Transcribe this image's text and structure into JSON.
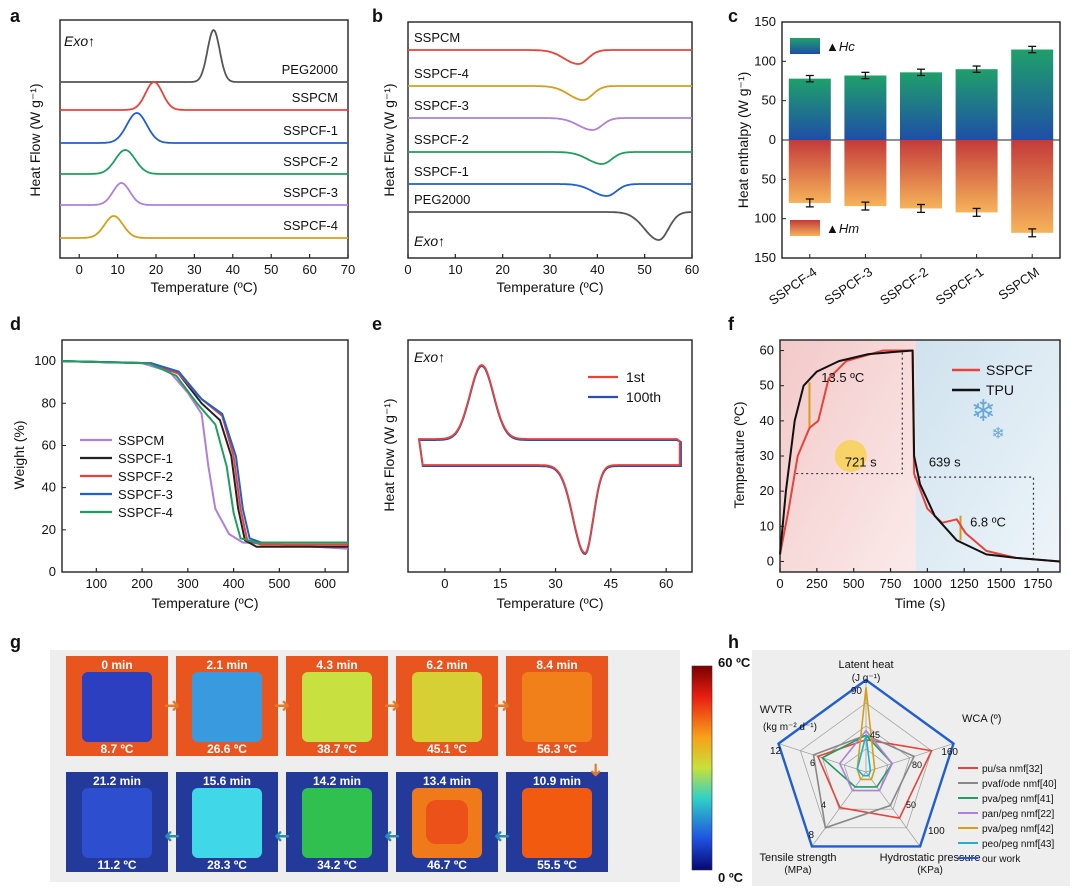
{
  "panel_letters": {
    "a": "a",
    "b": "b",
    "c": "c",
    "d": "d",
    "e": "e",
    "f": "f",
    "g": "g",
    "h": "h"
  },
  "chart_data": [
    {
      "id": "a",
      "type": "line",
      "title": "",
      "xlabel": "Temperature (ºC)",
      "ylabel": "Heat Flow (W g⁻¹)",
      "xlim": [
        -5,
        70
      ],
      "xticks": [
        0,
        10,
        20,
        30,
        40,
        50,
        60,
        70
      ],
      "annotation": "Exo↑",
      "series": [
        {
          "name": "PEG2000",
          "color": "#555555",
          "peak_x": 35
        },
        {
          "name": "SSPCM",
          "color": "#e8423b",
          "peak_x": 19.5
        },
        {
          "name": "SSPCF-1",
          "color": "#1f5fcf",
          "peak_x": 15
        },
        {
          "name": "SSPCF-2",
          "color": "#1f9e5f",
          "peak_x": 12
        },
        {
          "name": "SSPCF-3",
          "color": "#b07fd8",
          "peak_x": 11
        },
        {
          "name": "SSPCF-4",
          "color": "#d4a017",
          "peak_x": 9
        }
      ]
    },
    {
      "id": "b",
      "type": "line",
      "xlabel": "Temperature (ºC)",
      "ylabel": "Heat Flow (W g⁻¹)",
      "xlim": [
        0,
        60
      ],
      "xticks": [
        0,
        10,
        20,
        30,
        40,
        50,
        60
      ],
      "annotation": "Exo↑",
      "series": [
        {
          "name": "SSPCM",
          "color": "#e8423b",
          "dip_x": 36
        },
        {
          "name": "SSPCF-4",
          "color": "#d4a017",
          "dip_x": 37
        },
        {
          "name": "SSPCF-3",
          "color": "#b07fd8",
          "dip_x": 39
        },
        {
          "name": "SSPCF-2",
          "color": "#1f9e5f",
          "dip_x": 41
        },
        {
          "name": "SSPCF-1",
          "color": "#1f5fcf",
          "dip_x": 42
        },
        {
          "name": "PEG2000",
          "color": "#555555",
          "dip_x": 53
        }
      ]
    },
    {
      "id": "c",
      "type": "bar",
      "ylabel": "Heat enthalpy (W g⁻¹)",
      "ylim": [
        150,
        -150
      ],
      "yticks": [
        150,
        100,
        50,
        0,
        50,
        100,
        150
      ],
      "categories": [
        "SSPCF-4",
        "SSPCF-3",
        "SSPCF-2",
        "SSPCF-1",
        "SSPCM"
      ],
      "series": [
        {
          "name": "▲Hc",
          "values": [
            78,
            82,
            86,
            90,
            115
          ],
          "errors": [
            4,
            4,
            4,
            4,
            4
          ]
        },
        {
          "name": "▲Hm",
          "values": [
            -80,
            -84,
            -87,
            -92,
            -118
          ],
          "errors": [
            5,
            5,
            5,
            5,
            5
          ]
        }
      ]
    },
    {
      "id": "d",
      "type": "line",
      "xlabel": "Temperature (ºC)",
      "ylabel": "Weight (%)",
      "xlim": [
        25,
        650
      ],
      "ylim": [
        0,
        110
      ],
      "xticks": [
        100,
        200,
        300,
        400,
        500,
        600
      ],
      "yticks": [
        0,
        20,
        40,
        60,
        80,
        100
      ],
      "series": [
        {
          "name": "SSPCM",
          "color": "#b07fd8",
          "points": [
            [
              25,
              100
            ],
            [
              200,
              99
            ],
            [
              260,
              95
            ],
            [
              300,
              85
            ],
            [
              330,
              75
            ],
            [
              345,
              50
            ],
            [
              360,
              30
            ],
            [
              390,
              18
            ],
            [
              420,
              14
            ],
            [
              650,
              11
            ]
          ]
        },
        {
          "name": "SSPCF-1",
          "color": "#222222",
          "points": [
            [
              25,
              100
            ],
            [
              220,
              99
            ],
            [
              280,
              94
            ],
            [
              330,
              80
            ],
            [
              370,
              72
            ],
            [
              395,
              55
            ],
            [
              410,
              30
            ],
            [
              425,
              15
            ],
            [
              450,
              12
            ],
            [
              650,
              12
            ]
          ]
        },
        {
          "name": "SSPCF-2",
          "color": "#e8423b",
          "points": [
            [
              25,
              100
            ],
            [
              220,
              99
            ],
            [
              280,
              94
            ],
            [
              330,
              82
            ],
            [
              375,
              74
            ],
            [
              400,
              55
            ],
            [
              415,
              30
            ],
            [
              430,
              15
            ],
            [
              460,
              13
            ],
            [
              650,
              13
            ]
          ]
        },
        {
          "name": "SSPCF-3",
          "color": "#1f5fcf",
          "points": [
            [
              25,
              100
            ],
            [
              220,
              99
            ],
            [
              280,
              95
            ],
            [
              330,
              82
            ],
            [
              375,
              75
            ],
            [
              405,
              55
            ],
            [
              420,
              30
            ],
            [
              435,
              16
            ],
            [
              460,
              14
            ],
            [
              650,
              14
            ]
          ]
        },
        {
          "name": "SSPCF-4",
          "color": "#1f9e5f",
          "points": [
            [
              25,
              100
            ],
            [
              215,
              99
            ],
            [
              275,
              93
            ],
            [
              320,
              80
            ],
            [
              360,
              70
            ],
            [
              385,
              50
            ],
            [
              400,
              28
            ],
            [
              415,
              16
            ],
            [
              450,
              14
            ],
            [
              650,
              14
            ]
          ]
        }
      ]
    },
    {
      "id": "e",
      "type": "line",
      "xlabel": "Temperature (ºC)",
      "ylabel": "Heat Flow (W g⁻¹)",
      "xlim": [
        -10,
        67
      ],
      "xticks": [
        0,
        15,
        30,
        45,
        60
      ],
      "annotation": "Exo↑",
      "series": [
        {
          "name": "1st",
          "color": "#e8423b"
        },
        {
          "name": "100th",
          "color": "#2b4fb0"
        }
      ]
    },
    {
      "id": "f",
      "type": "line",
      "xlabel": "Time (s)",
      "ylabel": "Temperature (ºC)",
      "xlim": [
        0,
        1900
      ],
      "ylim": [
        -3,
        63
      ],
      "xticks": [
        0,
        250,
        500,
        750,
        1000,
        1250,
        1500,
        1750
      ],
      "yticks": [
        0,
        10,
        20,
        30,
        40,
        50,
        60
      ],
      "annotations": [
        "13.5 ºC",
        "721 s",
        "639 s",
        "6.8 ºC"
      ],
      "series": [
        {
          "name": "SSPCF",
          "color": "#e8423b",
          "points": [
            [
              0,
              2
            ],
            [
              60,
              15
            ],
            [
              120,
              30
            ],
            [
              200,
              38
            ],
            [
              260,
              40
            ],
            [
              330,
              52
            ],
            [
              450,
              57
            ],
            [
              700,
              60
            ],
            [
              900,
              60
            ],
            [
              910,
              25
            ],
            [
              1000,
              15
            ],
            [
              1100,
              11
            ],
            [
              1200,
              12
            ],
            [
              1260,
              8
            ],
            [
              1400,
              3
            ],
            [
              1600,
              1
            ],
            [
              1900,
              0
            ]
          ]
        },
        {
          "name": "TPU",
          "color": "#111111",
          "points": [
            [
              0,
              2
            ],
            [
              40,
              20
            ],
            [
              100,
              40
            ],
            [
              160,
              50
            ],
            [
              250,
              54
            ],
            [
              400,
              57
            ],
            [
              600,
              59
            ],
            [
              900,
              60
            ],
            [
              910,
              30
            ],
            [
              950,
              22
            ],
            [
              1050,
              13
            ],
            [
              1200,
              6
            ],
            [
              1400,
              2
            ],
            [
              1600,
              1
            ],
            [
              1900,
              0
            ]
          ]
        }
      ]
    },
    {
      "id": "g",
      "type": "other",
      "colorbar": {
        "max": "60 ºC",
        "min": "0 ºC"
      },
      "heating_frames": [
        {
          "time": "0 min",
          "temp": "8.7 ºC",
          "color": "#2b3fc0"
        },
        {
          "time": "2.1 min",
          "temp": "26.6 ºC",
          "color": "#3a9ae0"
        },
        {
          "time": "4.3 min",
          "temp": "38.7 ºC",
          "color": "#c8e040"
        },
        {
          "time": "6.2 min",
          "temp": "45.1 ºC",
          "color": "#d6d034"
        },
        {
          "time": "8.4 min",
          "temp": "56.3 ºC",
          "color": "#f2801a"
        }
      ],
      "cooling_frames": [
        {
          "time": "21.2 min",
          "temp": "11.2 ºC",
          "color": "#2e4ed0"
        },
        {
          "time": "15.6 min",
          "temp": "28.3 ºC",
          "color": "#40d8e8"
        },
        {
          "time": "14.2 min",
          "temp": "34.2 ºC",
          "color": "#30c050"
        },
        {
          "time": "13.4 min",
          "temp": "46.7 ºC",
          "color": "#f07a1a"
        },
        {
          "time": "10.9 min",
          "temp": "55.5 ºC",
          "color": "#f25a10"
        }
      ]
    },
    {
      "id": "h",
      "type": "radar",
      "axes": [
        {
          "label": "Latent heat",
          "sub": "(J g⁻¹)",
          "max": "90",
          "mid": "45"
        },
        {
          "label": "WCA (º)",
          "sub": "",
          "max": "160",
          "mid": "80"
        },
        {
          "label": "Hydrostatic pressure",
          "sub": "(KPa)",
          "max": "100",
          "mid": "50"
        },
        {
          "label": "Tensile strength",
          "sub": "(MPa)",
          "max": "8",
          "mid": "4"
        },
        {
          "label": "WVTR",
          "sub": "(kg m⁻² d⁻¹)",
          "max": "12",
          "mid": "6"
        }
      ],
      "series": [
        {
          "name": "pu/sa nmf[32]",
          "color": "#e8423b",
          "values": [
            0.35,
            0.75,
            0.62,
            0.48,
            0.55
          ]
        },
        {
          "name": "pvaf/ode nmf[40]",
          "color": "#888888",
          "values": [
            0.4,
            0.55,
            0.45,
            0.75,
            0.6
          ]
        },
        {
          "name": "pva/peg nmf[41]",
          "color": "#1f9e5f",
          "values": [
            0.4,
            0.3,
            0.2,
            0.2,
            0.5
          ]
        },
        {
          "name": "pan/peg nmf[22]",
          "color": "#b07fd8",
          "values": [
            0.45,
            0.3,
            0.25,
            0.25,
            0.3
          ]
        },
        {
          "name": "pva/peg nmf[42]",
          "color": "#d4a017",
          "values": [
            0.92,
            0.1,
            0.1,
            0.1,
            0.1
          ]
        },
        {
          "name": "peo/peg nmf[43]",
          "color": "#20b0c8",
          "values": [
            0.4,
            0.05,
            0.05,
            0.05,
            0.1
          ]
        },
        {
          "name": "our work",
          "color": "#1f5fcf",
          "values": [
            1,
            1,
            1,
            1,
            1
          ]
        }
      ]
    }
  ]
}
